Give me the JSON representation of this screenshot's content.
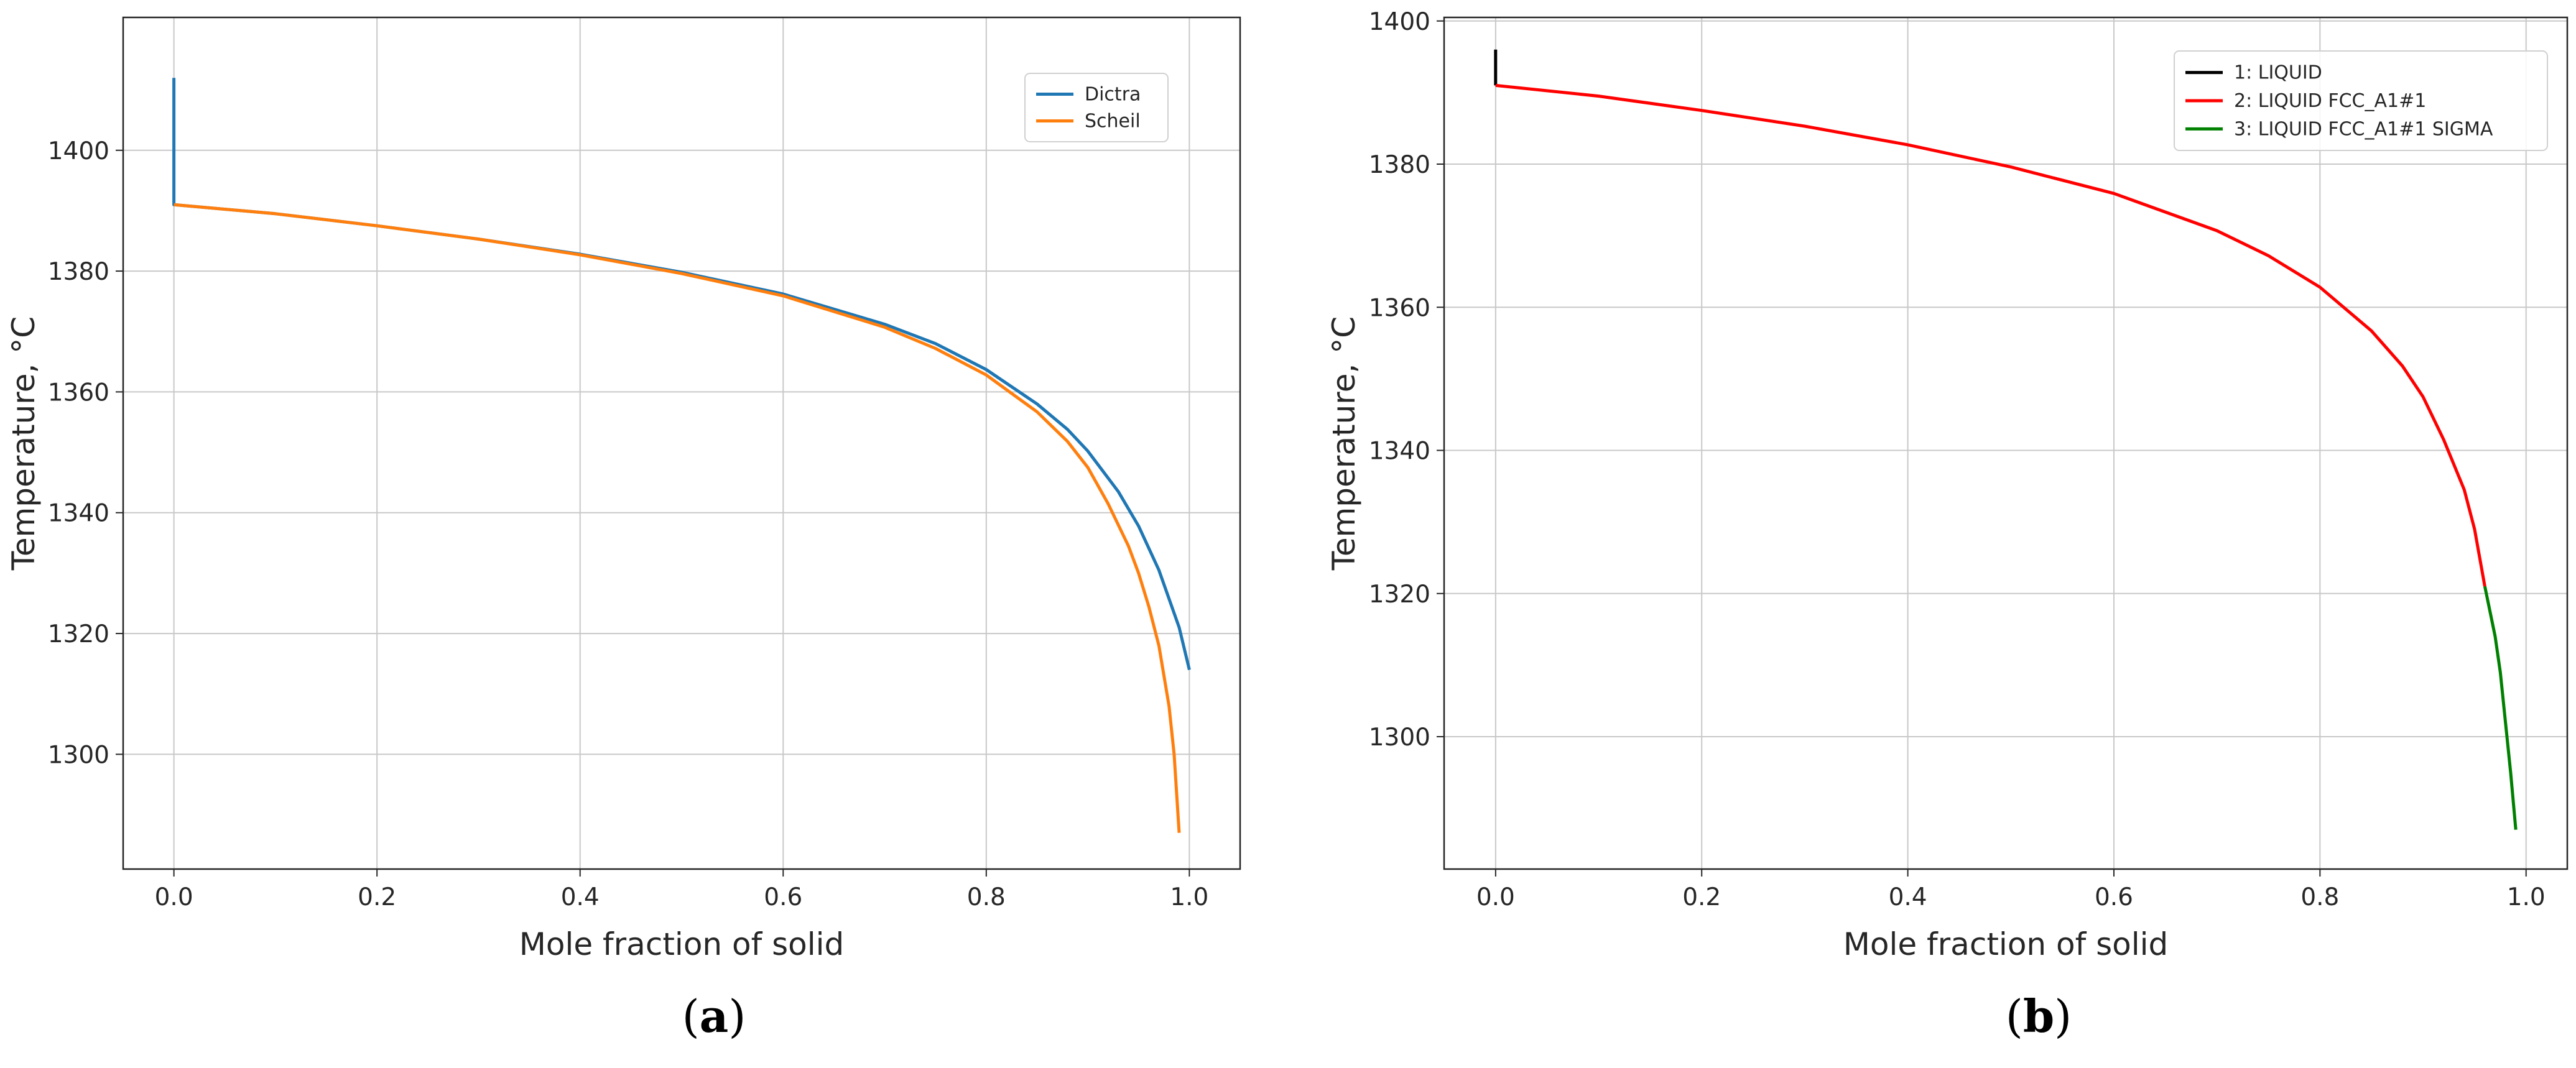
{
  "chart_data": [
    {
      "type": "line",
      "panel": "a",
      "caption_open": "(",
      "caption_letter": "a",
      "caption_close": ")",
      "xlabel": "Mole fraction of solid",
      "ylabel": "Temperature, °C",
      "xlim": [
        -0.05,
        1.05
      ],
      "ylim": [
        1281,
        1422
      ],
      "xticks": [
        0.0,
        0.2,
        0.4,
        0.6,
        0.8,
        1.0
      ],
      "xtick_labels": [
        "0.0",
        "0.2",
        "0.4",
        "0.6",
        "0.8",
        "1.0"
      ],
      "yticks": [
        1300,
        1320,
        1340,
        1360,
        1380,
        1400
      ],
      "ytick_labels": [
        "1300",
        "1320",
        "1340",
        "1360",
        "1380",
        "1400"
      ],
      "grid": true,
      "legend_position": "top-right",
      "series": [
        {
          "name": "Dictra",
          "color": "#1f77b4",
          "x": [
            0,
            0,
            0.1,
            0.2,
            0.3,
            0.4,
            0.5,
            0.6,
            0.7,
            0.75,
            0.8,
            0.85,
            0.88,
            0.9,
            0.93,
            0.95,
            0.97,
            0.99,
            1.0
          ],
          "y": [
            1412,
            1391,
            1389.5,
            1387.5,
            1385.3,
            1382.8,
            1379.8,
            1376.2,
            1371.2,
            1368,
            1363.7,
            1358,
            1353.8,
            1350.2,
            1343.5,
            1337.8,
            1330.5,
            1321,
            1314
          ]
        },
        {
          "name": "Scheil",
          "color": "#ff7f0e",
          "x": [
            0,
            0.1,
            0.2,
            0.3,
            0.4,
            0.5,
            0.6,
            0.7,
            0.75,
            0.8,
            0.85,
            0.88,
            0.9,
            0.92,
            0.94,
            0.95,
            0.96,
            0.97,
            0.98,
            0.985,
            0.99
          ],
          "y": [
            1391,
            1389.5,
            1387.5,
            1385.3,
            1382.7,
            1379.6,
            1375.9,
            1370.7,
            1367.2,
            1362.8,
            1356.7,
            1351.8,
            1347.5,
            1341.5,
            1334.5,
            1330,
            1324.5,
            1318,
            1308,
            1300,
            1287
          ]
        }
      ]
    },
    {
      "type": "line",
      "panel": "b",
      "caption_open": "(",
      "caption_letter": "b",
      "caption_close": ")",
      "xlabel": "Mole fraction of solid",
      "ylabel": "Temperature, °C",
      "xlim": [
        -0.05,
        1.04
      ],
      "ylim": [
        1281.5,
        1400.5
      ],
      "xticks": [
        0.0,
        0.2,
        0.4,
        0.6,
        0.8,
        1.0
      ],
      "xtick_labels": [
        "0.0",
        "0.2",
        "0.4",
        "0.6",
        "0.8",
        "1.0"
      ],
      "yticks": [
        1300,
        1320,
        1340,
        1360,
        1380,
        1400
      ],
      "ytick_labels": [
        "1300",
        "1320",
        "1340",
        "1360",
        "1380",
        "1400"
      ],
      "grid": true,
      "legend_position": "top-right",
      "series": [
        {
          "name": "1: LIQUID",
          "color": "#000000",
          "x": [
            0,
            0
          ],
          "y": [
            1396,
            1391
          ]
        },
        {
          "name": "2: LIQUID FCC_A1#1",
          "color": "#ff0000",
          "x": [
            0,
            0.1,
            0.2,
            0.3,
            0.4,
            0.5,
            0.6,
            0.7,
            0.75,
            0.8,
            0.85,
            0.88,
            0.9,
            0.92,
            0.94,
            0.95,
            0.96
          ],
          "y": [
            1391,
            1389.5,
            1387.5,
            1385.3,
            1382.7,
            1379.6,
            1375.9,
            1370.7,
            1367.2,
            1362.8,
            1356.7,
            1351.8,
            1347.5,
            1341.5,
            1334.5,
            1329,
            1321
          ]
        },
        {
          "name": "3: LIQUID FCC_A1#1 SIGMA",
          "color": "#008000",
          "x": [
            0.96,
            0.97,
            0.975,
            0.98,
            0.985,
            0.99
          ],
          "y": [
            1321,
            1314,
            1309,
            1302,
            1295,
            1287
          ]
        }
      ]
    }
  ]
}
